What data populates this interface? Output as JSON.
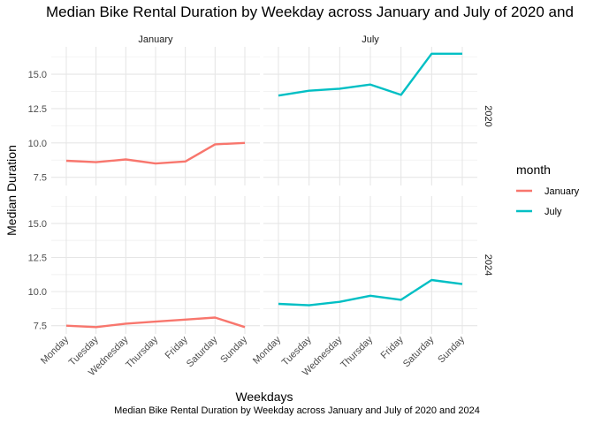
{
  "chart_data": {
    "type": "line",
    "title": "Median Bike Rental Duration by Weekday across January and July of 2020 and",
    "caption": "Median Bike Rental Duration by Weekday across January and July of 2020 and 2024",
    "xlabel": "Weekdays",
    "ylabel": "Median Duration",
    "categories": [
      "Monday",
      "Tuesday",
      "Wednesday",
      "Thursday",
      "Friday",
      "Saturday",
      "Sunday"
    ],
    "ylim": [
      6.9,
      17.0
    ],
    "yticks": [
      "7.5",
      "10.0",
      "12.5",
      "15.0"
    ],
    "facet_columns": [
      "January",
      "July"
    ],
    "facet_rows": [
      "2020",
      "2024"
    ],
    "legend": {
      "title": "month",
      "position": "right",
      "entries": [
        {
          "label": "January",
          "color": "#F8766D"
        },
        {
          "label": "July",
          "color": "#00BFC4"
        }
      ]
    },
    "grid": true,
    "panels": [
      {
        "month": "January",
        "year": "2020",
        "color": "#F8766D",
        "values": [
          8.7,
          8.6,
          8.8,
          8.5,
          8.65,
          9.9,
          10.0
        ]
      },
      {
        "month": "July",
        "year": "2020",
        "color": "#00BFC4",
        "values": [
          13.45,
          13.8,
          13.95,
          14.25,
          13.5,
          16.5,
          16.5
        ]
      },
      {
        "month": "January",
        "year": "2024",
        "color": "#F8766D",
        "values": [
          7.5,
          7.4,
          7.65,
          7.8,
          7.95,
          8.1,
          7.4
        ]
      },
      {
        "month": "July",
        "year": "2024",
        "color": "#00BFC4",
        "values": [
          9.1,
          9.0,
          9.25,
          9.7,
          9.4,
          10.85,
          10.55
        ]
      }
    ]
  }
}
